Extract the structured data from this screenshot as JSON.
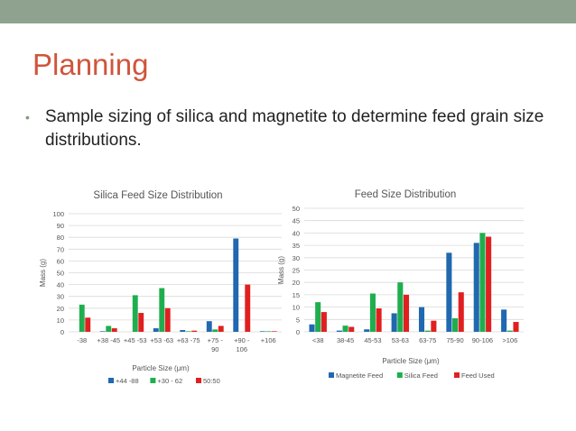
{
  "slide": {
    "title": "Planning",
    "bullet": "Sample sizing of silica and magnetite to determine feed grain size distributions."
  },
  "colors": {
    "title": "#d0553c",
    "band": "#8fa28f",
    "blue": "#2068b0",
    "green": "#1fae4e",
    "red": "#e02020"
  },
  "chart_data": [
    {
      "type": "bar",
      "title": "Silica Feed Size Distribution",
      "xlabel": "Particle Size (μm)",
      "ylabel": "Mass (g)",
      "ylim": [
        0,
        100
      ],
      "yticks": [
        0,
        10,
        20,
        30,
        40,
        50,
        60,
        70,
        80,
        90,
        100
      ],
      "categories": [
        "-38",
        "+38 -45",
        "+45 -53",
        "+53 -63",
        "+63 -75",
        "+75 - 90",
        "+90 - 106",
        "+106"
      ],
      "series": [
        {
          "name": "+44 -88",
          "color": "#2068b0",
          "values": [
            0,
            0.5,
            0,
            3,
            1.5,
            9,
            79,
            0.5
          ]
        },
        {
          "name": "+30 - 62",
          "color": "#1fae4e",
          "values": [
            23,
            5,
            31,
            37,
            0.5,
            2,
            0,
            0.5
          ]
        },
        {
          "name": "50:50",
          "color": "#e02020",
          "values": [
            12,
            3,
            16,
            20,
            1,
            5,
            40,
            0.5
          ]
        }
      ],
      "grid": true,
      "legend": "bottom"
    },
    {
      "type": "bar",
      "title": "Feed Size Distribution",
      "xlabel": "Particle Size (μm)",
      "ylabel": "Mass (g)",
      "ylim": [
        0,
        50
      ],
      "yticks": [
        0,
        5,
        10,
        15,
        20,
        25,
        30,
        35,
        40,
        45,
        50
      ],
      "categories": [
        "<38",
        "38-45",
        "45-53",
        "53-63",
        "63-75",
        "75-90",
        "90-106",
        ">106"
      ],
      "series": [
        {
          "name": "Magnetite Feed",
          "color": "#2068b0",
          "values": [
            3,
            0.5,
            1,
            7.5,
            10,
            32,
            36,
            9
          ]
        },
        {
          "name": "Silica Feed",
          "color": "#1fae4e",
          "values": [
            12,
            2.5,
            15.5,
            20,
            0.5,
            5.5,
            40,
            0.5
          ]
        },
        {
          "name": "Feed Used",
          "color": "#e02020",
          "values": [
            8,
            2,
            9.5,
            15,
            4.5,
            16,
            38.5,
            4
          ]
        }
      ],
      "grid": true,
      "legend": "bottom"
    }
  ]
}
